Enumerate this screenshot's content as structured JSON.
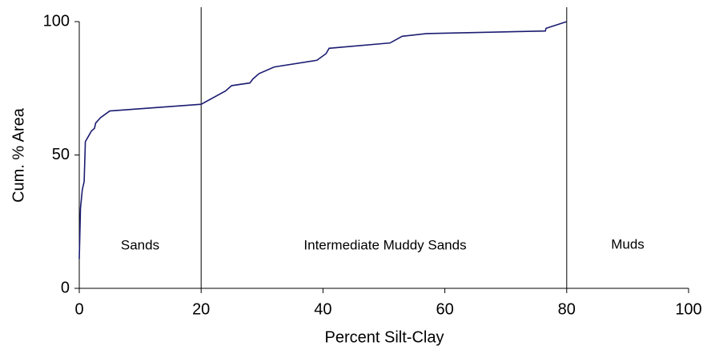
{
  "chart_data": {
    "type": "line",
    "xlabel": "Percent Silt-Clay",
    "ylabel": "Cum. % Area",
    "x": [
      0,
      0.2,
      0.5,
      0.8,
      1.0,
      1.5,
      2.0,
      2.5,
      2.7,
      3.5,
      5,
      20,
      24,
      25,
      28,
      28.5,
      29.5,
      32,
      39,
      40.5,
      41,
      51,
      53,
      57,
      76.5,
      76.6,
      80
    ],
    "series": [
      {
        "color": "#1c1c72",
        "values": [
          11,
          30,
          37,
          40,
          55,
          57,
          59,
          60,
          62,
          64,
          66.5,
          69,
          74,
          76,
          77,
          78.5,
          80.5,
          83,
          85.5,
          88,
          90,
          92,
          94.5,
          95.5,
          96.5,
          97.5,
          100
        ]
      }
    ],
    "vlines": [
      20,
      80
    ],
    "annotations": [
      "Sands",
      "Intermediate Muddy Sands",
      "Muds"
    ],
    "xlim": [
      0,
      100
    ],
    "xticks": [
      0,
      20,
      40,
      60,
      80,
      100
    ],
    "ylim": [
      0,
      100
    ],
    "yticks": [
      0,
      50,
      100
    ],
    "grid": false
  }
}
